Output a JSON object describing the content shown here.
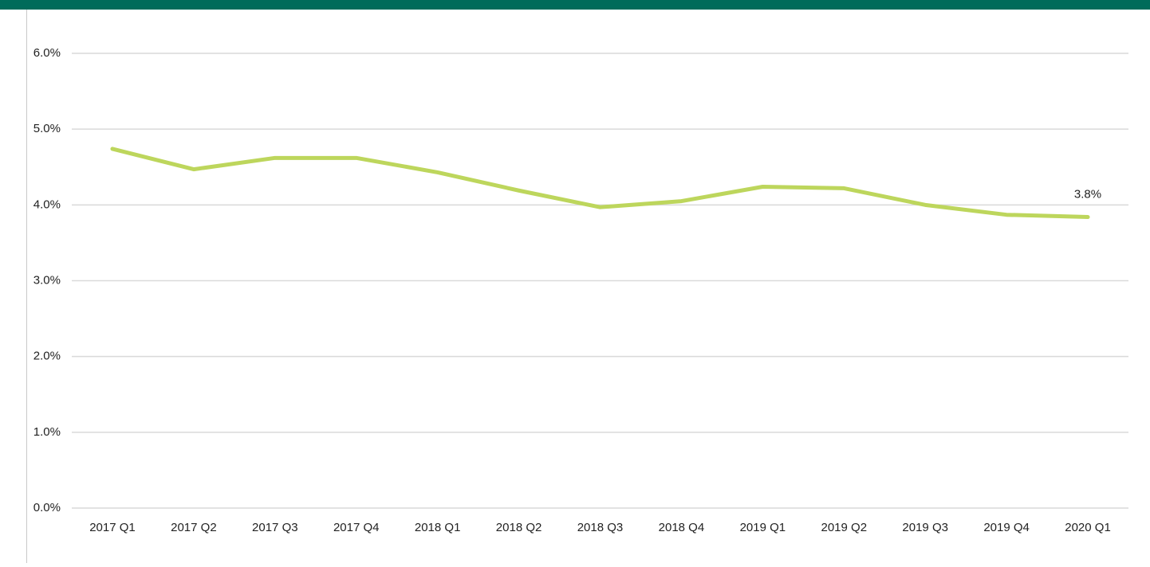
{
  "chart_data": {
    "type": "line",
    "categories": [
      "2017 Q1",
      "2017 Q2",
      "2017 Q3",
      "2017 Q4",
      "2018 Q1",
      "2018 Q2",
      "2018 Q3",
      "2018 Q4",
      "2019 Q1",
      "2019 Q2",
      "2019 Q3",
      "2019 Q4",
      "2020 Q1"
    ],
    "series": [
      {
        "color": "#bdd65c",
        "values": [
          4.74,
          4.47,
          4.62,
          4.62,
          4.43,
          4.19,
          3.97,
          4.05,
          4.24,
          4.22,
          4.0,
          3.87,
          3.84
        ],
        "value_labels": [
          null,
          null,
          null,
          null,
          null,
          null,
          null,
          null,
          null,
          null,
          null,
          null,
          "3.8%"
        ]
      }
    ],
    "ylim": [
      0,
      6
    ],
    "yticks": [
      {
        "value": 0,
        "label": "0.0%"
      },
      {
        "value": 1,
        "label": "1.0%"
      },
      {
        "value": 2,
        "label": "2.0%"
      },
      {
        "value": 3,
        "label": "3.0%"
      },
      {
        "value": 4,
        "label": "4.0%"
      },
      {
        "value": 5,
        "label": "5.0%"
      },
      {
        "value": 6,
        "label": "6.0%"
      }
    ],
    "grid": true
  }
}
